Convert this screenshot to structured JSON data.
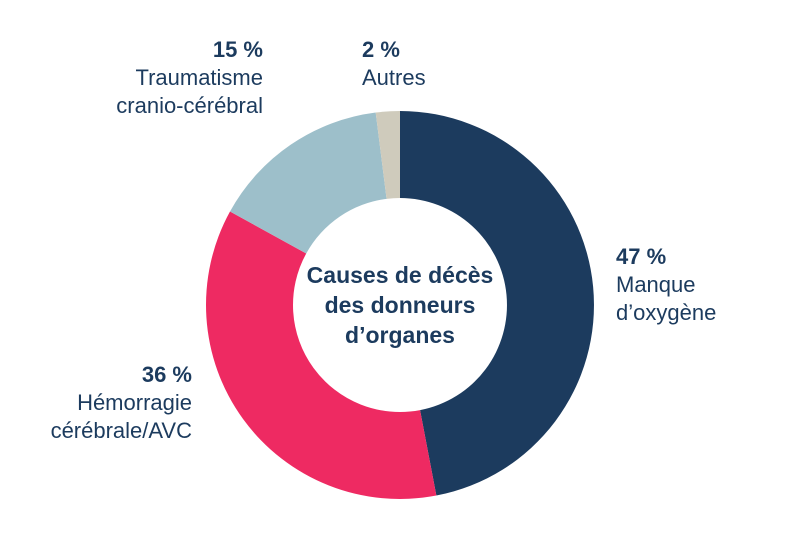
{
  "chart_data": {
    "type": "pie",
    "donut": true,
    "title": "Causes de décès des donneurs d’organes",
    "center_label_lines": [
      "Causes de décès",
      "des donneurs",
      "d’organes"
    ],
    "start_angle_deg": 0,
    "direction": "clockwise",
    "legend_position": "around-slices",
    "slices": [
      {
        "label": "Manque d’oxygène",
        "value": 47,
        "pct_label": "47 %",
        "color": "#1c3b5e"
      },
      {
        "label": "Hémorragie cérébrale/AVC",
        "value": 36,
        "pct_label": "36 %",
        "color": "#ee2a62"
      },
      {
        "label": "Traumatisme cranio-cérébral",
        "value": 15,
        "pct_label": "15 %",
        "color": "#9dbfca"
      },
      {
        "label": "Autres",
        "value": 2,
        "pct_label": "2 %",
        "color": "#cfcbbc"
      }
    ]
  },
  "annotations": {
    "trauma": {
      "pct": "15 %",
      "lines": [
        "Traumatisme",
        "cranio-cérébral"
      ]
    },
    "autres": {
      "pct": "2 %",
      "lines": [
        "Autres"
      ]
    },
    "oxygene": {
      "pct": "47 %",
      "lines": [
        "Manque",
        "d’oxygène"
      ]
    },
    "avc": {
      "pct": "36 %",
      "lines": [
        "Hémorragie",
        "cérébrale/AVC"
      ]
    }
  },
  "center": {
    "line1": "Causes de décès",
    "line2": "des donneurs",
    "line3": "d’organes"
  },
  "colors": {
    "text": "#1c3b5e",
    "background": "#ffffff"
  }
}
